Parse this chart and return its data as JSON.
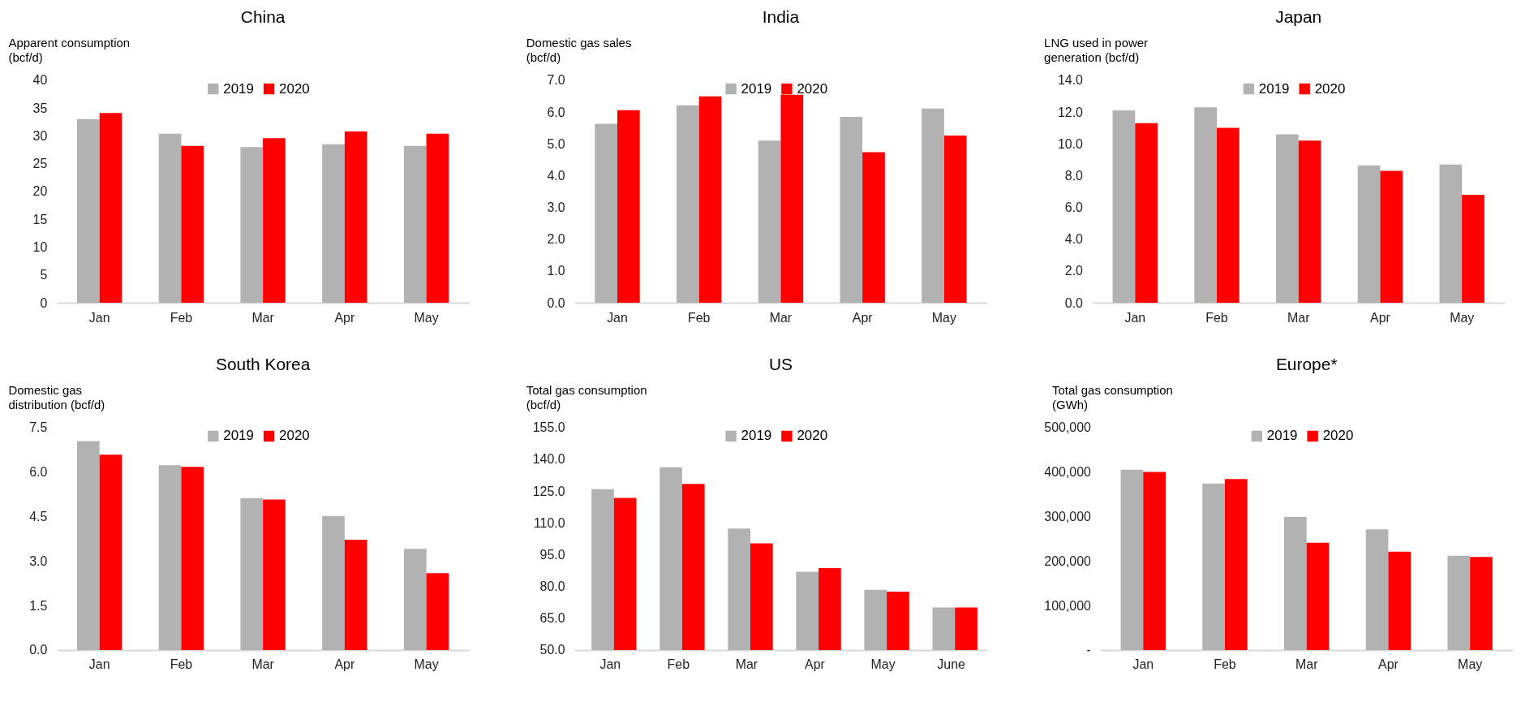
{
  "chart_data": [
    {
      "type": "bar",
      "title": "China",
      "ylabel": "Apparent consumption (bcf/d)",
      "categories": [
        "Jan",
        "Feb",
        "Mar",
        "Apr",
        "May"
      ],
      "series": [
        {
          "name": "2019",
          "color": "#b2b2b2",
          "values": [
            33.0,
            30.4,
            28.0,
            28.5,
            28.2
          ]
        },
        {
          "name": "2020",
          "color": "#ff0000",
          "values": [
            34.1,
            28.2,
            29.6,
            30.8,
            30.4
          ]
        }
      ],
      "ylim": [
        0,
        40
      ],
      "yticks": [
        0,
        5,
        10,
        15,
        20,
        25,
        30,
        35,
        40
      ],
      "grid": false,
      "legend": "top"
    },
    {
      "type": "bar",
      "title": "India",
      "ylabel": "Domestic gas sales (bcf/d)",
      "categories": [
        "Jan",
        "Feb",
        "Mar",
        "Apr",
        "May"
      ],
      "series": [
        {
          "name": "2019",
          "color": "#b2b2b2",
          "values": [
            5.63,
            6.21,
            5.1,
            5.85,
            6.11
          ]
        },
        {
          "name": "2020",
          "color": "#ff0000",
          "values": [
            6.06,
            6.49,
            6.54,
            4.74,
            5.26
          ]
        }
      ],
      "ylim": [
        0,
        7
      ],
      "yticks": [
        {
          "value": 0,
          "label": "0.0"
        },
        {
          "value": 1,
          "label": "1.0"
        },
        {
          "value": 2,
          "label": "2.0"
        },
        {
          "value": 3,
          "label": "3.0"
        },
        {
          "value": 4,
          "label": "4.0"
        },
        {
          "value": 5,
          "label": "5.0"
        },
        {
          "value": 6,
          "label": "6.0"
        },
        {
          "value": 7,
          "label": "7.0"
        }
      ],
      "grid": false,
      "legend": "top"
    },
    {
      "type": "bar",
      "title": "Japan",
      "ylabel": "LNG used in power generation (bcf/d)",
      "categories": [
        "Jan",
        "Feb",
        "Mar",
        "Apr",
        "May"
      ],
      "series": [
        {
          "name": "2019",
          "color": "#b2b2b2",
          "values": [
            12.1,
            12.3,
            10.6,
            8.65,
            8.7
          ]
        },
        {
          "name": "2020",
          "color": "#ff0000",
          "values": [
            11.3,
            11.0,
            10.2,
            8.3,
            6.8
          ]
        }
      ],
      "ylim": [
        0,
        14
      ],
      "yticks": [
        {
          "value": 0,
          "label": "0.0"
        },
        {
          "value": 2,
          "label": "2.0"
        },
        {
          "value": 4,
          "label": "4.0"
        },
        {
          "value": 6,
          "label": "6.0"
        },
        {
          "value": 8,
          "label": "8.0"
        },
        {
          "value": 10,
          "label": "10.0"
        },
        {
          "value": 12,
          "label": "12.0"
        },
        {
          "value": 14,
          "label": "14.0"
        }
      ],
      "grid": false,
      "legend": "top"
    },
    {
      "type": "bar",
      "title": "South Korea",
      "ylabel": "Domestic gas distribution (bcf/d)",
      "categories": [
        "Jan",
        "Feb",
        "Mar",
        "Apr",
        "May"
      ],
      "series": [
        {
          "name": "2019",
          "color": "#b2b2b2",
          "values": [
            7.04,
            6.23,
            5.12,
            4.52,
            3.41
          ]
        },
        {
          "name": "2020",
          "color": "#ff0000",
          "values": [
            6.58,
            6.17,
            5.07,
            3.72,
            2.59
          ]
        }
      ],
      "ylim": [
        0,
        7.5
      ],
      "yticks": [
        {
          "value": 0,
          "label": "0.0"
        },
        1.5,
        {
          "value": 3,
          "label": "3.0"
        },
        4.5,
        {
          "value": 6,
          "label": "6.0"
        },
        7.5
      ],
      "grid": false,
      "legend": "top"
    },
    {
      "type": "bar",
      "title": "US",
      "ylabel": "Total gas consumption (bcf/d)",
      "categories": [
        "Jan",
        "Feb",
        "Mar",
        "Apr",
        "May",
        "June"
      ],
      "series": [
        {
          "name": "2019",
          "color": "#b2b2b2",
          "values": [
            125.9,
            136.2,
            107.3,
            86.9,
            78.4,
            70.1
          ]
        },
        {
          "name": "2020",
          "color": "#ff0000",
          "values": [
            121.8,
            128.4,
            100.3,
            88.7,
            77.6,
            70.1
          ]
        }
      ],
      "ylim": [
        50,
        155
      ],
      "yticks": [
        {
          "value": 50,
          "label": "50.0"
        },
        {
          "value": 65,
          "label": "65.0"
        },
        {
          "value": 80,
          "label": "80.0"
        },
        {
          "value": 95,
          "label": "95.0"
        },
        {
          "value": 110,
          "label": "110.0"
        },
        {
          "value": 125,
          "label": "125.0"
        },
        {
          "value": 140,
          "label": "140.0"
        },
        {
          "value": 155,
          "label": "155.0"
        }
      ],
      "grid": false,
      "legend": "top"
    },
    {
      "type": "bar",
      "title": "Europe*",
      "ylabel": "Total gas consumption (GWh)",
      "categories": [
        "Jan",
        "Feb",
        "Mar",
        "Apr",
        "May"
      ],
      "series": [
        {
          "name": "2019",
          "color": "#b2b2b2",
          "values": [
            405000,
            374000,
            299000,
            271000,
            212000
          ]
        },
        {
          "name": "2020",
          "color": "#ff0000",
          "values": [
            400000,
            384000,
            241000,
            221000,
            209000
          ]
        }
      ],
      "ylim": [
        0,
        500000
      ],
      "yticks": [
        {
          "value": 0,
          "label": "-"
        },
        {
          "value": 100000,
          "label": "100,000"
        },
        {
          "value": 200000,
          "label": "200,000"
        },
        {
          "value": 300000,
          "label": "300,000"
        },
        {
          "value": 400000,
          "label": "400,000"
        },
        {
          "value": 500000,
          "label": "500,000"
        }
      ],
      "grid": false,
      "legend": "top"
    }
  ]
}
